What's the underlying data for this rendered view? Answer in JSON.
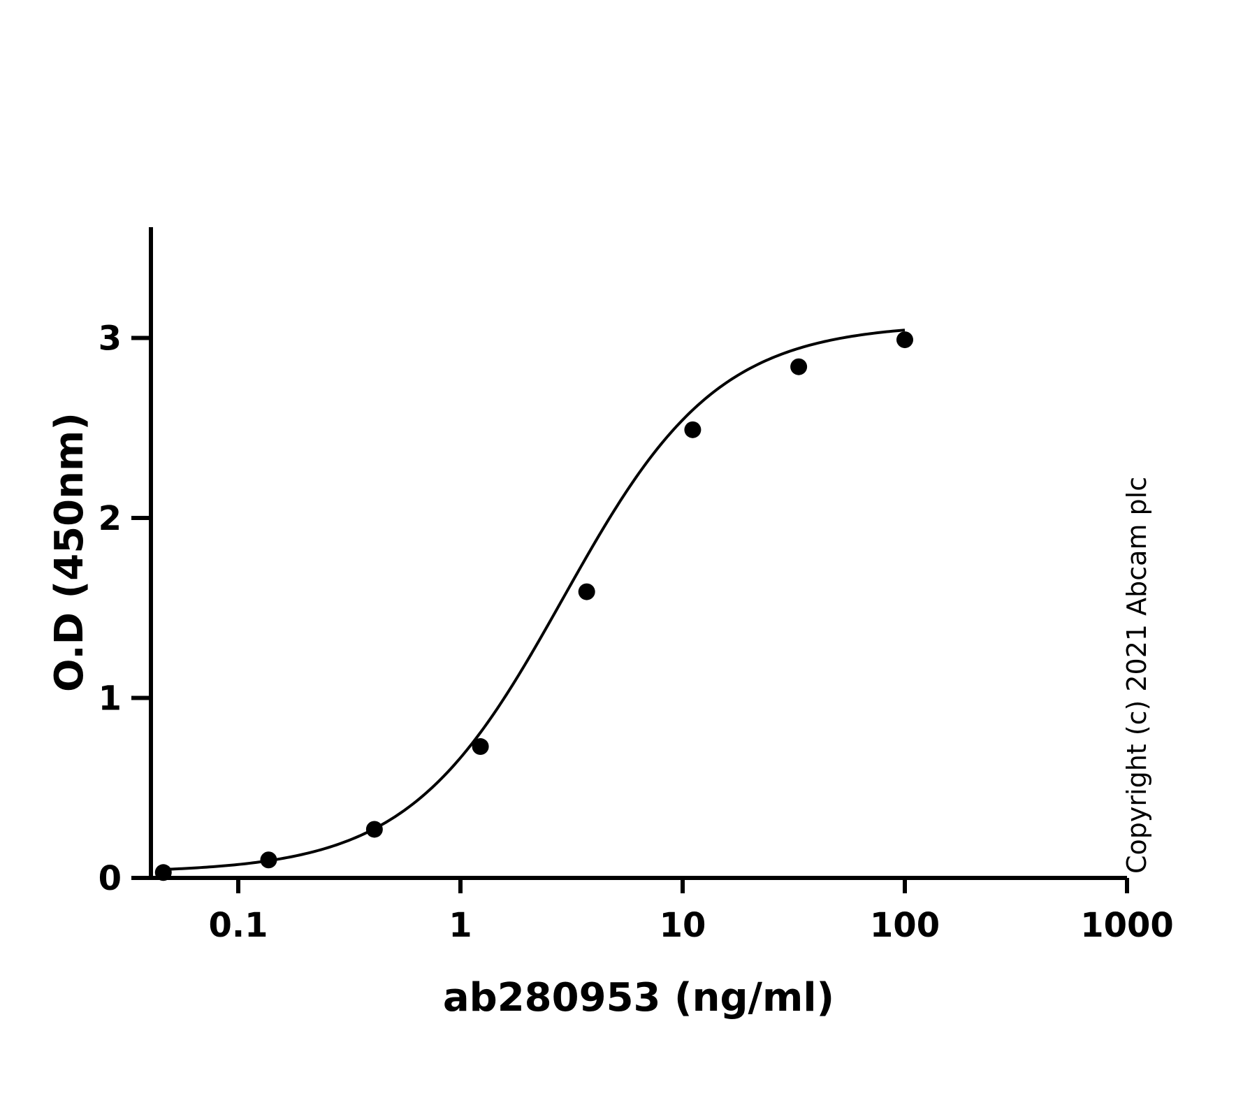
{
  "chart_data": {
    "type": "scatter",
    "xlabel": "ab280953 (ng/ml)",
    "ylabel": "O.D (450nm)",
    "x_scale": "log",
    "xlim": [
      0.04,
      1000
    ],
    "ylim": [
      0,
      3.6
    ],
    "x_ticks": [
      0.1,
      1,
      10,
      100,
      1000
    ],
    "x_tick_labels": [
      "0.1",
      "1",
      "10",
      "100",
      "1000"
    ],
    "y_ticks": [
      0,
      1,
      2,
      3
    ],
    "y_tick_labels": [
      "0",
      "1",
      "2",
      "3"
    ],
    "grid": false,
    "legend": "none",
    "series": [
      {
        "points": [
          {
            "x": 0.046,
            "y": 0.03
          },
          {
            "x": 0.137,
            "y": 0.1
          },
          {
            "x": 0.41,
            "y": 0.27
          },
          {
            "x": 1.23,
            "y": 0.73
          },
          {
            "x": 3.7,
            "y": 1.59
          },
          {
            "x": 11.1,
            "y": 2.49
          },
          {
            "x": 33.3,
            "y": 2.84
          },
          {
            "x": 100,
            "y": 2.99
          }
        ]
      }
    ],
    "fit_curve": {
      "model": "4PL",
      "bottom": 0.03,
      "top": 3.08,
      "ec50": 2.9,
      "hill": 1.25,
      "x_range": [
        0.046,
        100
      ]
    },
    "annotation": "Copyright (c) 2021 Abcam plc",
    "colors": {
      "marks": "#000000",
      "background": "#ffffff"
    }
  }
}
